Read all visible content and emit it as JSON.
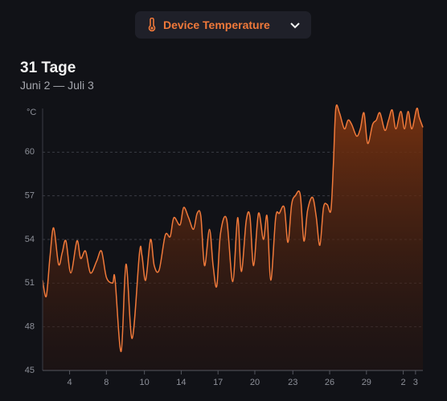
{
  "header": {
    "dropdown": "Device Temperature",
    "title": "31 Tage",
    "subtitle": "Juni 2 — Juli 3"
  },
  "chart_data": {
    "type": "area",
    "y_label": "°C",
    "color": "#f0793a",
    "grid": true,
    "x": [
      0,
      0.3,
      0.6,
      0.9,
      1.3,
      1.6,
      1.9,
      2.3,
      2.8,
      3.1,
      3.5,
      3.9,
      4.4,
      4.8,
      5.2,
      5.7,
      5.9,
      6.4,
      6.8,
      7.3,
      7.9,
      8.1,
      8.4,
      8.8,
      9.1,
      9.5,
      10.0,
      10.4,
      10.7,
      11.2,
      11.5,
      11.9,
      12.3,
      12.6,
      12.9,
      13.2,
      13.6,
      13.9,
      14.2,
      14.5,
      15.0,
      15.5,
      15.9,
      16.2,
      16.6,
      16.9,
      17.2,
      17.6,
      18.0,
      18.3,
      18.6,
      19.0,
      19.3,
      19.7,
      20.0,
      20.3,
      20.6,
      21.0,
      21.3,
      21.6,
      22.0,
      22.3,
      22.6,
      22.9,
      23.2,
      23.5,
      23.7,
      23.9,
      24.2,
      24.6,
      24.9,
      25.2,
      25.6,
      25.9,
      26.2,
      26.5,
      26.9,
      27.2,
      27.5,
      27.9,
      28.2,
      28.5,
      28.8,
      29.2,
      29.5,
      29.8,
      30.1,
      30.5,
      30.7,
      31.0
    ],
    "values": [
      51.2,
      50.1,
      52.8,
      54.8,
      52.3,
      53.1,
      53.9,
      51.7,
      53.9,
      52.7,
      53.2,
      51.7,
      52.5,
      53.2,
      51.4,
      51.0,
      51.3,
      46.3,
      52.3,
      47.2,
      53.1,
      52.9,
      51.2,
      54.0,
      52.2,
      51.9,
      54.3,
      54.2,
      55.5,
      55.0,
      56.2,
      55.5,
      54.7,
      55.8,
      55.6,
      52.2,
      54.7,
      52.2,
      50.8,
      54.4,
      55.4,
      51.1,
      55.5,
      51.8,
      55.3,
      55.6,
      52.2,
      55.8,
      54.0,
      55.6,
      51.2,
      55.5,
      55.8,
      56.2,
      53.8,
      56.4,
      57.0,
      57.1,
      53.9,
      56.0,
      56.9,
      55.6,
      53.6,
      56.2,
      56.4,
      56.0,
      59.1,
      63.0,
      62.7,
      61.6,
      62.2,
      61.9,
      61.1,
      61.6,
      62.7,
      60.6,
      61.9,
      62.2,
      62.7,
      61.5,
      62.2,
      62.9,
      61.6,
      62.8,
      61.6,
      62.8,
      61.6,
      63.0,
      62.4,
      61.7
    ],
    "xlim": [
      0,
      31
    ],
    "xticks": [
      {
        "value": 2.2,
        "label": "4"
      },
      {
        "value": 5.2,
        "label": "8"
      },
      {
        "value": 8.3,
        "label": "10"
      },
      {
        "value": 11.3,
        "label": "14"
      },
      {
        "value": 14.3,
        "label": "17"
      },
      {
        "value": 17.3,
        "label": "20"
      },
      {
        "value": 20.4,
        "label": "23"
      },
      {
        "value": 23.4,
        "label": "26"
      },
      {
        "value": 26.4,
        "label": "29"
      },
      {
        "value": 29.4,
        "label": "2"
      },
      {
        "value": 30.4,
        "label": "3"
      }
    ],
    "ylim": [
      45,
      63
    ],
    "yticks": [
      45,
      48,
      51,
      54,
      57,
      60
    ]
  }
}
